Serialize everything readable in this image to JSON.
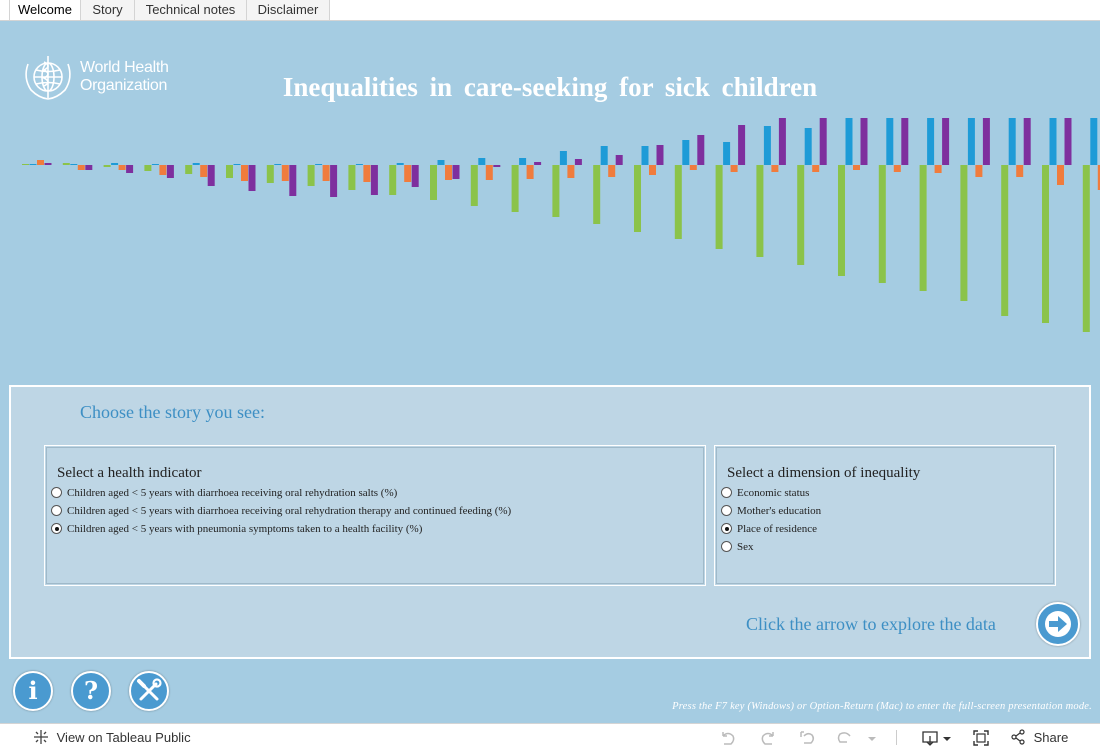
{
  "tabs": [
    "Welcome",
    "Story",
    "Technical notes",
    "Disclaimer"
  ],
  "active_tab": "Welcome",
  "logo": {
    "line1": "World Health",
    "line2": "Organization"
  },
  "title": "Inequalities in care-seeking for sick children",
  "chart_data": {
    "type": "bar",
    "colors": [
      "#8bc34a",
      "#1e9bd7",
      "#f07c3d",
      "#7e2f9e"
    ],
    "groups": [
      [
        1,
        1,
        5,
        2
      ],
      [
        2,
        1,
        -5,
        -5
      ],
      [
        -2,
        2,
        -5,
        -8
      ],
      [
        -6,
        1,
        -10,
        -13
      ],
      [
        -9,
        2,
        -12,
        -21
      ],
      [
        -13,
        1,
        -16,
        -26
      ],
      [
        -18,
        1,
        -16,
        -31
      ],
      [
        -21,
        1,
        -16,
        -32
      ],
      [
        -25,
        1,
        -17,
        -30
      ],
      [
        -30,
        2,
        -17,
        -22
      ],
      [
        -35,
        5,
        -15,
        -14
      ],
      [
        -41,
        7,
        -15,
        -2
      ],
      [
        -47,
        7,
        -14,
        3
      ],
      [
        -52,
        14,
        -13,
        6
      ],
      [
        -59,
        19,
        -12,
        10
      ],
      [
        -67,
        19,
        -10,
        20
      ],
      [
        -74,
        25,
        -5,
        30
      ],
      [
        -84,
        23,
        -7,
        40
      ],
      [
        -92,
        39,
        -7,
        56
      ],
      [
        -100,
        37,
        -7,
        73
      ],
      [
        -111,
        51,
        -5,
        83
      ],
      [
        -118,
        49,
        -7,
        95
      ],
      [
        -126,
        70,
        -8,
        111
      ],
      [
        -136,
        70,
        -12,
        127
      ],
      [
        -151,
        82,
        -12,
        142
      ],
      [
        -158,
        80,
        -20,
        149
      ],
      [
        -167,
        95,
        -25,
        167
      ],
      [
        -168,
        102,
        -30,
        184
      ],
      [
        -175,
        108,
        -32,
        203
      ]
    ]
  },
  "story": {
    "heading": "Choose the story you see:",
    "indicator": {
      "title": "Select a health indicator",
      "options": [
        "Children aged < 5 years with diarrhoea receiving oral rehydration salts (%)",
        "Children aged < 5 years with diarrhoea receiving oral rehydration therapy and continued feeding (%)",
        "Children aged < 5 years with pneumonia symptoms taken to a health facility (%)"
      ],
      "selected": 2
    },
    "dimension": {
      "title": "Select a dimension of inequality",
      "options": [
        "Economic status",
        "Mother's education",
        "Place of residence",
        "Sex"
      ],
      "selected": 2
    },
    "explore_text": "Click the arrow to explore the data"
  },
  "buttons": {
    "info": "i",
    "help": "?",
    "tools": "tools-icon",
    "next": "arrow-right-icon"
  },
  "hint": "Press the F7 key (Windows) or Option-Return (Mac) to enter the full-screen presentation mode.",
  "toolbar": {
    "view_on": "View on Tableau Public",
    "share": "Share"
  }
}
